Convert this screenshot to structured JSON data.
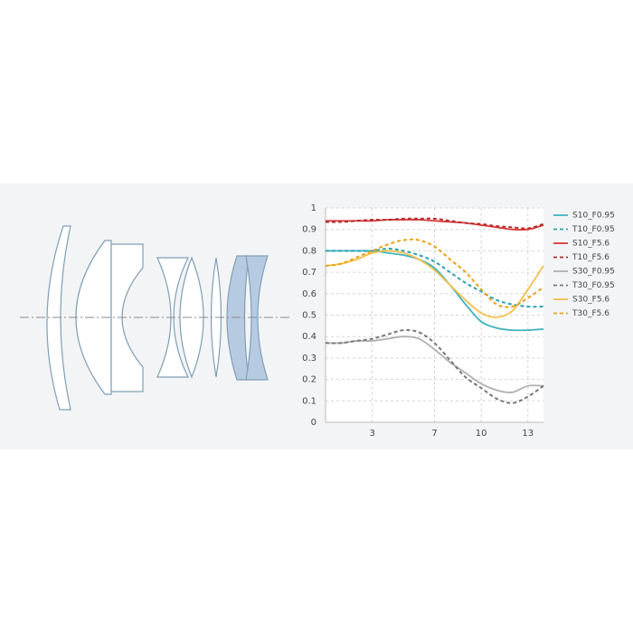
{
  "chart_data": {
    "type": "line",
    "x": [
      0,
      1,
      2,
      3,
      4,
      5,
      6,
      7,
      8,
      9,
      10,
      11,
      12,
      13,
      14
    ],
    "xlim": [
      0,
      14
    ],
    "xticks": [
      3,
      7,
      10,
      13
    ],
    "ylim": [
      0,
      1
    ],
    "yticks": [
      0,
      0.1,
      0.2,
      0.3,
      0.4,
      0.5,
      0.6,
      0.7,
      0.8,
      0.9,
      1
    ],
    "grid": true,
    "legend": "right",
    "series": [
      {
        "name": "S10_F0.95",
        "color": "#3fb3c0",
        "dash": false,
        "values": [
          0.8,
          0.8,
          0.8,
          0.8,
          0.79,
          0.78,
          0.76,
          0.72,
          0.64,
          0.55,
          0.47,
          0.44,
          0.43,
          0.43,
          0.435
        ]
      },
      {
        "name": "T10_F0.95",
        "color": "#2aa3b3",
        "dash": true,
        "values": [
          0.8,
          0.8,
          0.8,
          0.8,
          0.81,
          0.8,
          0.78,
          0.75,
          0.7,
          0.65,
          0.61,
          0.57,
          0.55,
          0.54,
          0.54
        ]
      },
      {
        "name": "S10_F5.6",
        "color": "#d9393a",
        "dash": false,
        "values": [
          0.94,
          0.94,
          0.94,
          0.94,
          0.945,
          0.945,
          0.945,
          0.94,
          0.935,
          0.93,
          0.92,
          0.91,
          0.9,
          0.9,
          0.92
        ]
      },
      {
        "name": "T10_F5.6",
        "color": "#b52a2a",
        "dash": true,
        "values": [
          0.935,
          0.935,
          0.94,
          0.945,
          0.945,
          0.95,
          0.95,
          0.95,
          0.94,
          0.93,
          0.925,
          0.915,
          0.91,
          0.905,
          0.925
        ]
      },
      {
        "name": "S30_F0.95",
        "color": "#b0b0b0",
        "dash": false,
        "values": [
          0.37,
          0.37,
          0.38,
          0.38,
          0.39,
          0.4,
          0.39,
          0.34,
          0.28,
          0.23,
          0.18,
          0.15,
          0.14,
          0.17,
          0.17
        ]
      },
      {
        "name": "T30_F0.95",
        "color": "#777777",
        "dash": true,
        "values": [
          0.37,
          0.37,
          0.38,
          0.39,
          0.41,
          0.43,
          0.42,
          0.37,
          0.29,
          0.21,
          0.16,
          0.11,
          0.09,
          0.12,
          0.17
        ]
      },
      {
        "name": "S30_F5.6",
        "color": "#f5be4a",
        "dash": false,
        "values": [
          0.73,
          0.74,
          0.76,
          0.79,
          0.8,
          0.79,
          0.76,
          0.71,
          0.64,
          0.57,
          0.51,
          0.49,
          0.52,
          0.62,
          0.73
        ]
      },
      {
        "name": "T30_F5.6",
        "color": "#e8a317",
        "dash": true,
        "values": [
          0.73,
          0.74,
          0.77,
          0.8,
          0.83,
          0.85,
          0.85,
          0.82,
          0.76,
          0.7,
          0.62,
          0.55,
          0.54,
          0.58,
          0.63
        ]
      }
    ]
  }
}
